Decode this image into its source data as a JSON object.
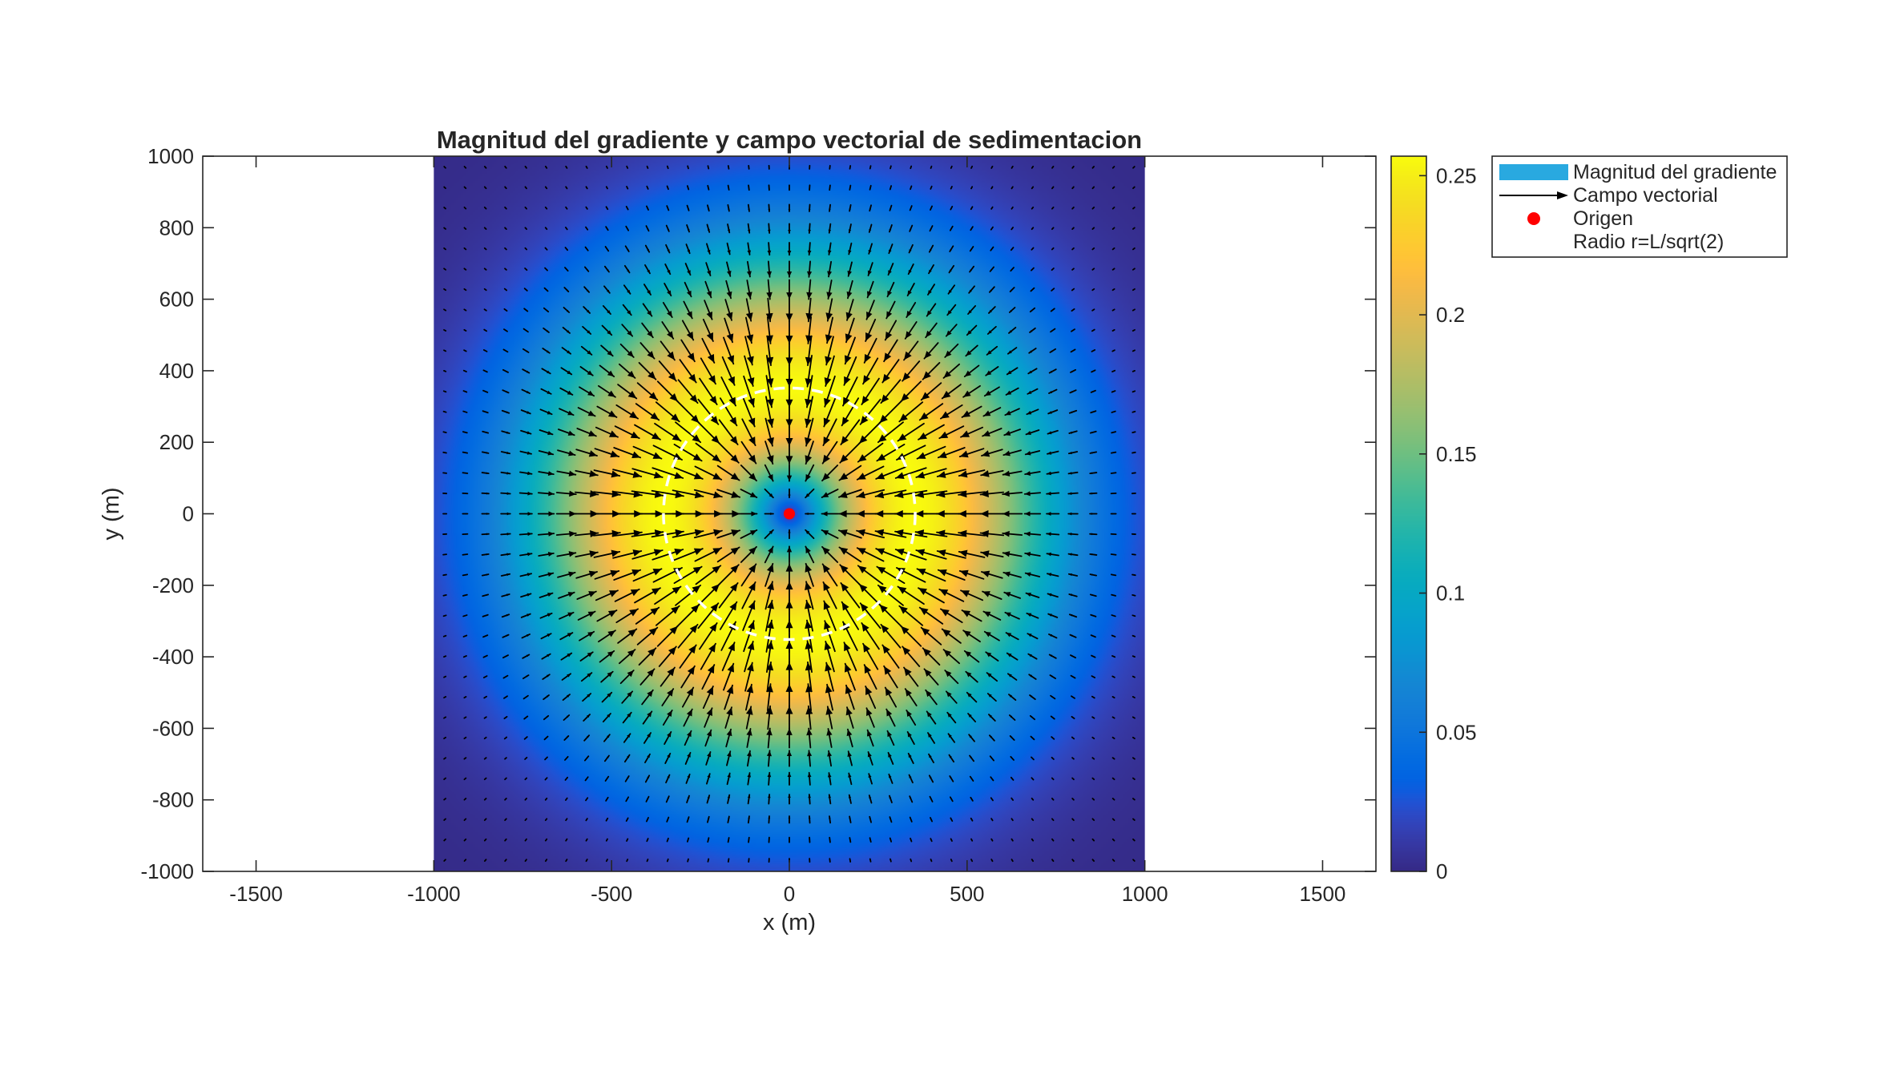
{
  "chart_data": {
    "type": "heatmap",
    "title": "Magnitud del gradiente y campo vectorial de sedimentacion",
    "xlabel": "x (m)",
    "ylabel": "y (m)",
    "xlim": [
      -1650,
      1650
    ],
    "ylim": [
      -1000,
      1000
    ],
    "x_ticks": [
      -1500,
      -1000,
      -500,
      0,
      500,
      1000,
      1500
    ],
    "x_tick_labels": [
      "-1500",
      "-1000",
      "-500",
      "0",
      "500",
      "1000",
      "1500"
    ],
    "y_ticks": [
      1000,
      800,
      600,
      400,
      200,
      0,
      -200,
      -400,
      -600,
      -800,
      -1000
    ],
    "y_tick_labels": [
      "1000",
      "800",
      "600",
      "400",
      "200",
      "0",
      "-200",
      "-400",
      "-600",
      "-800",
      "-1000"
    ],
    "field": {
      "domain_x": [
        -1000,
        1000
      ],
      "domain_y": [
        -1000,
        1000
      ],
      "length_scale_L": 500,
      "peak_magnitude": 0.257,
      "peak_radius": 354,
      "vector_spacing": 57,
      "vector_direction": "toward-origin"
    },
    "origin_point": {
      "x": 0,
      "y": 0,
      "color": "#ff0000"
    },
    "radius_circle": {
      "radius": 354,
      "color": "#ffffff",
      "style": "dashed"
    },
    "colorbar": {
      "colormap": "parula",
      "range": [
        0,
        0.257
      ],
      "ticks": [
        0,
        0.05,
        0.1,
        0.15,
        0.2,
        0.25
      ],
      "tick_labels": [
        "0",
        "0.05",
        "0.1",
        "0.15",
        "0.2",
        "0.25"
      ]
    },
    "legend": {
      "placement": "top-right-outside",
      "entries": [
        {
          "label": "Magnitud del gradiente",
          "icon": "filled-patch-icon",
          "color": "#29a9e0"
        },
        {
          "label": "Campo vectorial",
          "icon": "arrow-icon",
          "color": "#000000"
        },
        {
          "label": "Origen",
          "icon": "dot-icon",
          "color": "#ff0000"
        },
        {
          "label": "Radio r=L/sqrt(2)",
          "icon": "dashed-line-icon",
          "color": "#ffffff"
        }
      ]
    },
    "grid": false
  }
}
